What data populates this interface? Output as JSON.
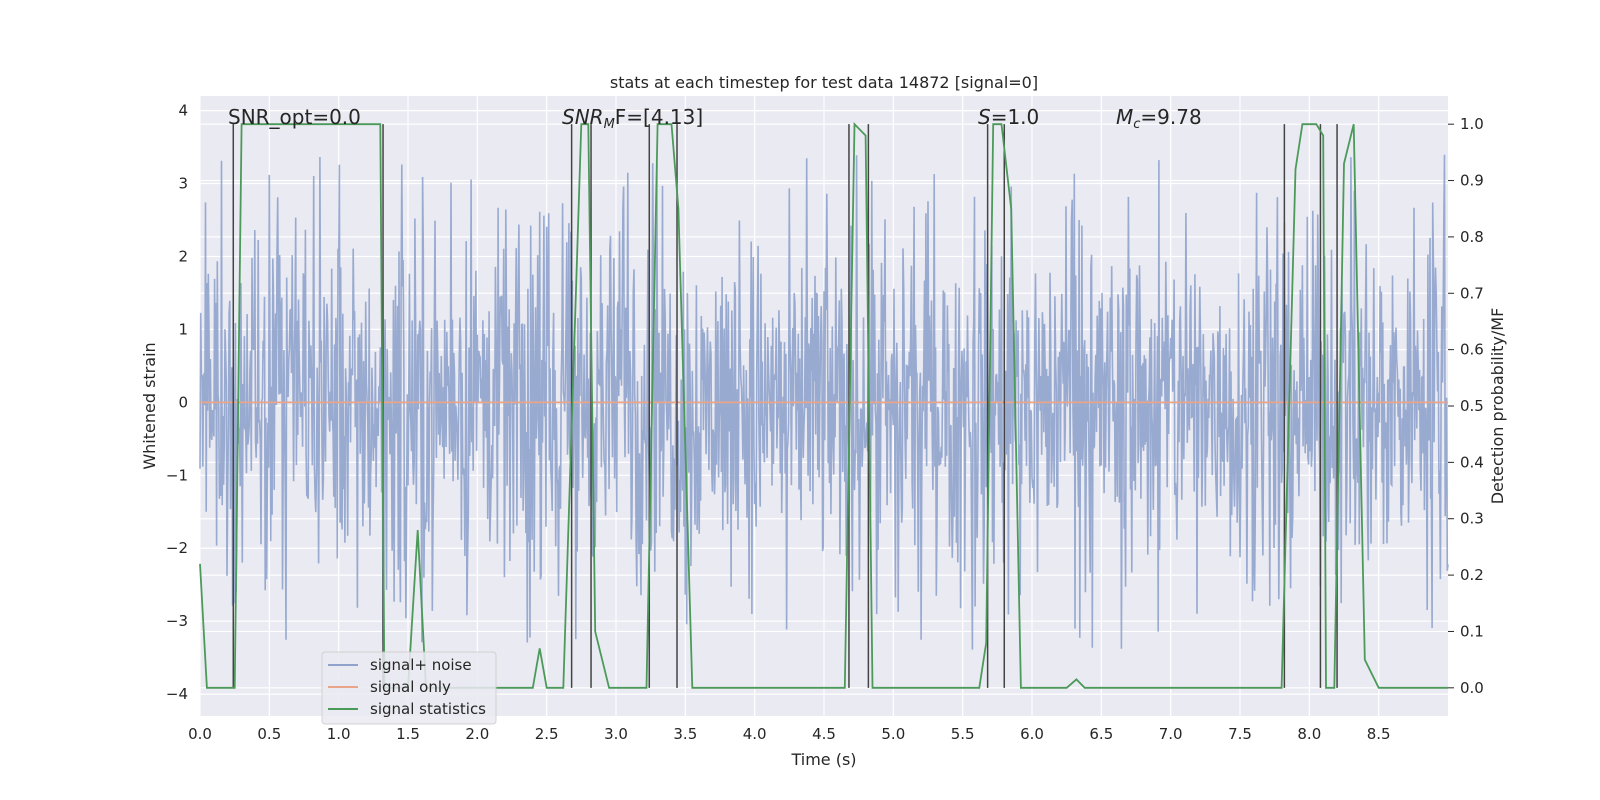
{
  "chart_data": {
    "type": "line",
    "title": "stats at each timestep for test data 14872 [signal=0]",
    "xlabel": "Time (s)",
    "ylabel": "Whitened strain",
    "ylabel_right": "Detection probability/MF",
    "xlim": [
      0.0,
      9.0
    ],
    "ylim_left": [
      -4.3,
      4.2
    ],
    "ylim_right": [
      -0.05,
      1.05
    ],
    "x_ticks": [
      "0.0",
      "0.5",
      "1.0",
      "1.5",
      "2.0",
      "2.5",
      "3.0",
      "3.5",
      "4.0",
      "4.5",
      "5.0",
      "5.5",
      "6.0",
      "6.5",
      "7.0",
      "7.5",
      "8.0",
      "8.5"
    ],
    "y_ticks_left": [
      "4",
      "3",
      "2",
      "1",
      "0",
      "−1",
      "−2",
      "−3",
      "−4"
    ],
    "y_ticks_right": [
      "1.0",
      "0.9",
      "0.8",
      "0.7",
      "0.6",
      "0.5",
      "0.4",
      "0.3",
      "0.2",
      "0.1",
      "0.0"
    ],
    "annotations": {
      "snr_opt": "SNR_opt=0.0",
      "snr_mf_main": "SNR",
      "snr_mf_sub": "M",
      "snr_mf_rest": "F=[4.13]",
      "s_main": "S",
      "s_rest": "=1.0",
      "mc_main": "M",
      "mc_sub": "c",
      "mc_rest": "=9.78"
    },
    "series": [
      {
        "name": "signal+ noise",
        "color": "#8fa3cc",
        "axis": "left",
        "description_envelope": {
          "low": -2.5,
          "high": 2.6,
          "peak_max": 3.4,
          "peak_min": -3.6
        }
      },
      {
        "name": "signal only",
        "color": "#e8a58a",
        "axis": "left",
        "x": [
          0.0,
          9.0
        ],
        "y": [
          0.0,
          0.0
        ]
      },
      {
        "name": "signal statistics",
        "color": "#4c9a5a",
        "axis": "right",
        "x": [
          0.0,
          0.05,
          0.25,
          0.3,
          1.3,
          1.33,
          1.5,
          1.57,
          1.63,
          1.65,
          2.4,
          2.45,
          2.5,
          2.62,
          2.75,
          2.8,
          2.85,
          2.95,
          3.22,
          3.3,
          3.4,
          3.45,
          3.55,
          4.65,
          4.72,
          4.8,
          4.85,
          5.62,
          5.67,
          5.72,
          5.78,
          5.85,
          5.92,
          6.0,
          6.25,
          6.32,
          6.38,
          7.8,
          7.9,
          7.95,
          8.05,
          8.1,
          8.12,
          8.18,
          8.25,
          8.32,
          8.4,
          8.5,
          9.0
        ],
        "y": [
          0.22,
          0.0,
          0.0,
          1.0,
          1.0,
          0.0,
          0.0,
          0.28,
          0.0,
          0.0,
          0.0,
          0.07,
          0.0,
          0.0,
          1.0,
          1.0,
          0.1,
          0.0,
          0.0,
          1.0,
          1.0,
          0.85,
          0.0,
          0.0,
          1.0,
          0.98,
          0.0,
          0.0,
          0.08,
          1.0,
          1.0,
          0.85,
          0.0,
          0.0,
          0.0,
          0.015,
          0.0,
          0.0,
          0.92,
          1.0,
          1.0,
          0.98,
          0.0,
          0.0,
          0.93,
          1.0,
          0.05,
          0.0,
          0.0
        ]
      },
      {
        "name": "event markers",
        "color": "#444444",
        "axis": "right",
        "x": [
          0.24,
          1.32,
          2.68,
          2.82,
          3.24,
          3.44,
          4.68,
          4.82,
          5.68,
          5.8,
          7.82,
          8.08,
          8.2
        ]
      }
    ],
    "legend": {
      "position": "lower-left",
      "entries": [
        "signal+ noise",
        "signal only",
        "signal statistics"
      ]
    },
    "colors": {
      "plot_bg": "#eaeaf2",
      "grid": "#ffffff",
      "noise": "#8fa3cc",
      "signal_only": "#e8a58a",
      "stats": "#4c9a5a",
      "markers": "#444444"
    }
  }
}
